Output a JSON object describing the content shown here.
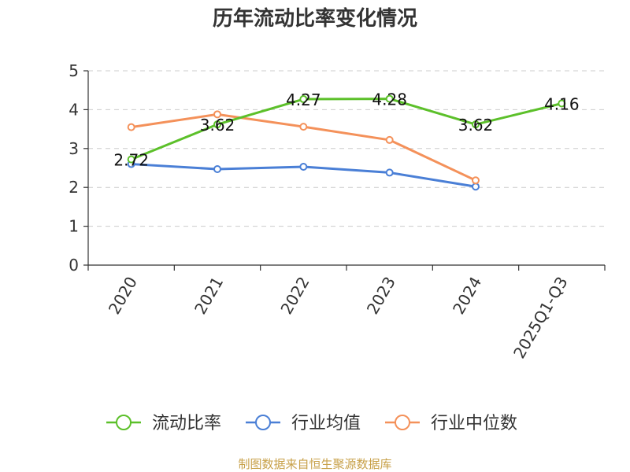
{
  "chart_data": {
    "type": "line",
    "title": "历年流动比率变化情况",
    "categories": [
      "2020",
      "2021",
      "2022",
      "2023",
      "2024",
      "2025Q1-Q3"
    ],
    "ylim": [
      0,
      5
    ],
    "yticks": [
      0,
      1,
      2,
      3,
      4,
      5
    ],
    "grid": true,
    "legend_position": "bottom",
    "series": [
      {
        "name": "流动比率",
        "color": "#5cc02a",
        "values": [
          2.72,
          3.62,
          4.27,
          4.28,
          3.62,
          4.16
        ],
        "labels": [
          "2.72",
          "3.62",
          "4.27",
          "4.28",
          "3.62",
          "4.16"
        ],
        "show_labels": true
      },
      {
        "name": "行业均值",
        "color": "#4a7fd6",
        "values": [
          2.6,
          2.47,
          2.53,
          2.38,
          2.02,
          null
        ],
        "show_labels": false
      },
      {
        "name": "行业中位数",
        "color": "#f4915a",
        "values": [
          3.55,
          3.88,
          3.56,
          3.22,
          2.18,
          null
        ],
        "show_labels": false
      }
    ],
    "source": "制图数据来自恒生聚源数据库"
  }
}
